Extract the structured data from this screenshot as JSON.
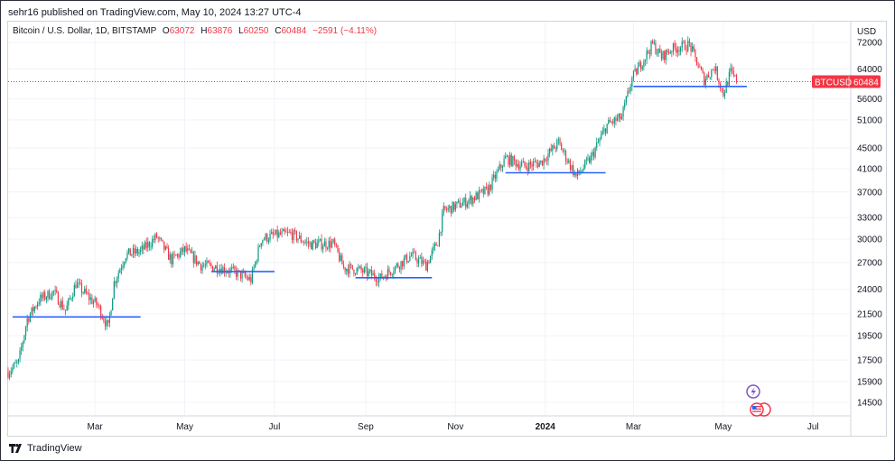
{
  "header": {
    "published_text": "sehr16 published on TradingView.com, May 10, 2024 13:27 UTC-4"
  },
  "legend": {
    "symbol_title": "Bitcoin / U.S. Dollar, 1D, BITSTAMP",
    "open_label": "O",
    "open_value": "63072",
    "high_label": "H",
    "high_value": "63876",
    "low_label": "L",
    "low_value": "60250",
    "close_label": "C",
    "close_value": "60484",
    "change_text": "−2591 (−4.11%)"
  },
  "footer": {
    "brand": "TradingView",
    "logo_icon": "tradingview-logo-icon"
  },
  "colors": {
    "up": "#089981",
    "down": "#f23645",
    "support_line": "#2962ff",
    "price_badge": "#f23645"
  },
  "chart_data": {
    "type": "candlestick",
    "symbol": "BTCUSD",
    "currency": "USD",
    "price_scale": "log",
    "last_price": 60484,
    "price_ticks": [
      72000,
      64000,
      56000,
      51000,
      45000,
      41000,
      37000,
      33000,
      30000,
      27000,
      24000,
      21500,
      19500,
      17500,
      15900,
      14500
    ],
    "time_ticks": [
      {
        "label": "Mar",
        "date": "2023-03-01",
        "bold": false
      },
      {
        "label": "May",
        "date": "2023-05-01",
        "bold": false
      },
      {
        "label": "Jul",
        "date": "2023-07-01",
        "bold": false
      },
      {
        "label": "Sep",
        "date": "2023-09-01",
        "bold": false
      },
      {
        "label": "Nov",
        "date": "2023-11-01",
        "bold": false
      },
      {
        "label": "2024",
        "date": "2024-01-01",
        "bold": true
      },
      {
        "label": "Mar",
        "date": "2024-03-01",
        "bold": false
      },
      {
        "label": "May",
        "date": "2024-05-01",
        "bold": false
      },
      {
        "label": "Jul",
        "date": "2024-07-01",
        "bold": false
      }
    ],
    "date_range": [
      "2023-01-01",
      "2024-07-26"
    ],
    "price_range": [
      13700,
      79000
    ],
    "anchors": [
      [
        "2023-01-01",
        16600
      ],
      [
        "2023-01-08",
        17300
      ],
      [
        "2023-01-14",
        21000
      ],
      [
        "2023-01-22",
        22900
      ],
      [
        "2023-02-01",
        23700
      ],
      [
        "2023-02-09",
        21800
      ],
      [
        "2023-02-16",
        24600
      ],
      [
        "2023-02-25",
        23100
      ],
      [
        "2023-03-03",
        22300
      ],
      [
        "2023-03-10",
        20200
      ],
      [
        "2023-03-14",
        24700
      ],
      [
        "2023-03-22",
        28000
      ],
      [
        "2023-04-01",
        28400
      ],
      [
        "2023-04-12",
        30300
      ],
      [
        "2023-04-22",
        27300
      ],
      [
        "2023-05-01",
        28600
      ],
      [
        "2023-05-12",
        26700
      ],
      [
        "2023-05-25",
        26400
      ],
      [
        "2023-06-05",
        25800
      ],
      [
        "2023-06-15",
        25000
      ],
      [
        "2023-06-22",
        30000
      ],
      [
        "2023-07-01",
        30500
      ],
      [
        "2023-07-12",
        30700
      ],
      [
        "2023-07-25",
        29300
      ],
      [
        "2023-08-10",
        29400
      ],
      [
        "2023-08-17",
        26400
      ],
      [
        "2023-08-28",
        26100
      ],
      [
        "2023-09-11",
        25200
      ],
      [
        "2023-09-22",
        26600
      ],
      [
        "2023-10-02",
        27900
      ],
      [
        "2023-10-12",
        26700
      ],
      [
        "2023-10-20",
        29700
      ],
      [
        "2023-10-24",
        34000
      ],
      [
        "2023-11-08",
        35400
      ],
      [
        "2023-11-23",
        37300
      ],
      [
        "2023-12-05",
        43000
      ],
      [
        "2023-12-18",
        41500
      ],
      [
        "2023-12-29",
        42200
      ],
      [
        "2024-01-10",
        46100
      ],
      [
        "2024-01-22",
        39600
      ],
      [
        "2024-02-01",
        43000
      ],
      [
        "2024-02-12",
        49900
      ],
      [
        "2024-02-22",
        51600
      ],
      [
        "2024-02-29",
        61300
      ],
      [
        "2024-03-14",
        71500
      ],
      [
        "2024-03-20",
        67500
      ],
      [
        "2024-03-27",
        70000
      ],
      [
        "2024-04-08",
        71300
      ],
      [
        "2024-04-18",
        61000
      ],
      [
        "2024-04-25",
        64500
      ],
      [
        "2024-05-01",
        57300
      ],
      [
        "2024-05-06",
        63100
      ],
      [
        "2024-05-10",
        60484
      ]
    ],
    "support_lines": [
      {
        "from": "2023-01-04",
        "to": "2023-04-01",
        "price": 21200
      },
      {
        "from": "2023-05-19",
        "to": "2023-07-01",
        "price": 25950
      },
      {
        "from": "2023-08-25",
        "to": "2023-10-16",
        "price": 25250
      },
      {
        "from": "2023-12-05",
        "to": "2024-02-11",
        "price": 40300
      },
      {
        "from": "2024-03-01",
        "to": "2024-05-17",
        "price": 59200
      }
    ]
  }
}
